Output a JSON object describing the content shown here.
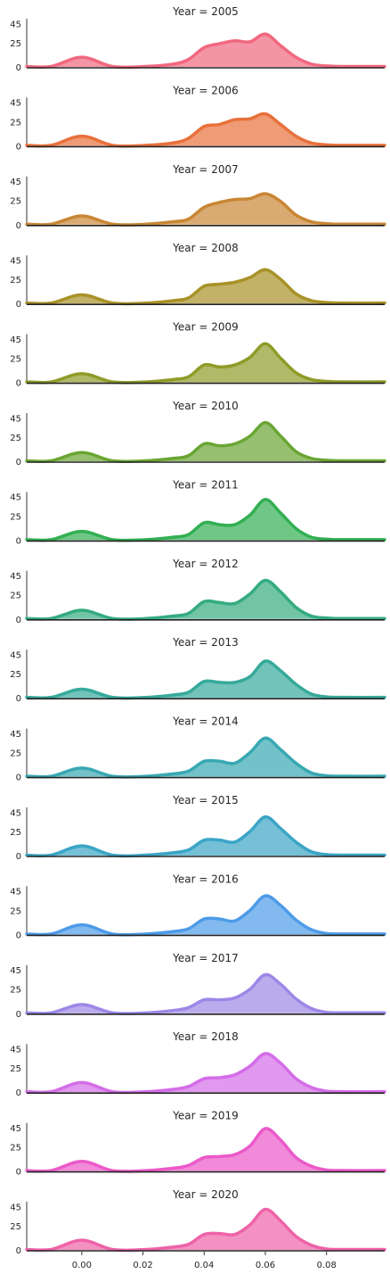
{
  "chart_data": {
    "type": "area",
    "subplot_title_prefix": "Year = ",
    "x_ticks": [
      "0.00",
      "0.02",
      "0.04",
      "0.06",
      "0.08"
    ],
    "x_tick_values": [
      0.0,
      0.02,
      0.04,
      0.06,
      0.08
    ],
    "y_ticks": [
      "0",
      "25",
      "45"
    ],
    "y_tick_values": [
      0,
      25,
      45
    ],
    "xlim": [
      -0.018,
      0.099
    ],
    "ylim": [
      -2,
      48
    ],
    "x_grid": [
      -0.018,
      -0.01,
      0.0,
      0.01,
      0.02,
      0.03,
      0.035,
      0.04,
      0.045,
      0.05,
      0.055,
      0.06,
      0.065,
      0.07,
      0.075,
      0.08,
      0.085,
      0.099
    ],
    "panels": [
      {
        "year": "2005",
        "color": "#f0687f",
        "values": [
          0.5,
          0.5,
          10,
          0.5,
          0.3,
          3,
          8,
          20,
          24,
          27,
          26,
          34,
          22,
          10,
          3,
          1,
          0.5,
          0.5
        ]
      },
      {
        "year": "2006",
        "color": "#e8703b",
        "values": [
          0.5,
          0.5,
          10,
          0.5,
          0.3,
          3,
          8,
          20,
          22,
          27,
          28,
          33,
          22,
          10,
          3,
          1,
          0.5,
          0.5
        ]
      },
      {
        "year": "2007",
        "color": "#c98634",
        "values": [
          0.5,
          0.5,
          9,
          0.5,
          0.3,
          3,
          6,
          18,
          23,
          26,
          27,
          32,
          24,
          10,
          3,
          1,
          0.5,
          0.5
        ]
      },
      {
        "year": "2008",
        "color": "#a89127",
        "values": [
          0.5,
          0.5,
          9,
          0.5,
          0.3,
          3,
          6,
          18,
          20,
          22,
          27,
          35,
          25,
          10,
          3,
          1,
          0.5,
          0.5
        ]
      },
      {
        "year": "2009",
        "color": "#8e9b27",
        "values": [
          0.5,
          0.5,
          9,
          0.5,
          0.3,
          3,
          6,
          18,
          16,
          18,
          26,
          40,
          25,
          10,
          3,
          1,
          0.5,
          0.5
        ]
      },
      {
        "year": "2010",
        "color": "#6aa533",
        "values": [
          0.5,
          0.5,
          9,
          0.5,
          0.3,
          3,
          6,
          18,
          16,
          18,
          26,
          40,
          26,
          10,
          3,
          1,
          0.5,
          0.5
        ]
      },
      {
        "year": "2011",
        "color": "#32af52",
        "values": [
          0.5,
          0.5,
          9,
          0.5,
          0.3,
          3,
          6,
          18,
          16,
          16,
          26,
          42,
          28,
          12,
          3,
          1,
          0.5,
          0.5
        ]
      },
      {
        "year": "2012",
        "color": "#34ab80",
        "values": [
          0.5,
          0.5,
          9,
          0.5,
          0.3,
          3,
          6,
          18,
          17,
          16,
          26,
          40,
          28,
          12,
          3,
          1,
          0.5,
          0.5
        ]
      },
      {
        "year": "2013",
        "color": "#36a99b",
        "values": [
          0.5,
          0.5,
          9,
          0.5,
          0.3,
          3,
          6,
          17,
          16,
          16,
          22,
          38,
          28,
          14,
          4,
          1,
          0.5,
          0.5
        ]
      },
      {
        "year": "2014",
        "color": "#38a8b2",
        "values": [
          0.5,
          0.5,
          9,
          0.5,
          0.3,
          3,
          6,
          16,
          16,
          14,
          25,
          40,
          28,
          14,
          4,
          1,
          0.5,
          0.5
        ]
      },
      {
        "year": "2015",
        "color": "#3aa5c6",
        "values": [
          0.5,
          0.5,
          10,
          0.5,
          0.3,
          3,
          6,
          16,
          16,
          14,
          25,
          40,
          28,
          14,
          4,
          1,
          0.5,
          0.5
        ]
      },
      {
        "year": "2016",
        "color": "#4d9be8",
        "values": [
          0.5,
          0.5,
          10,
          0.5,
          0.3,
          3,
          6,
          16,
          16,
          14,
          25,
          40,
          30,
          15,
          5,
          1,
          0.5,
          0.5
        ]
      },
      {
        "year": "2017",
        "color": "#9c87e6",
        "values": [
          0.5,
          0.5,
          9,
          0.5,
          0.3,
          3,
          6,
          14,
          14,
          16,
          25,
          40,
          30,
          15,
          5,
          1,
          0.5,
          0.5
        ]
      },
      {
        "year": "2018",
        "color": "#d46ce8",
        "values": [
          0.5,
          0.5,
          10,
          0.5,
          0.3,
          3,
          6,
          14,
          15,
          18,
          27,
          40,
          30,
          14,
          5,
          1,
          0.5,
          0.5
        ]
      },
      {
        "year": "2019",
        "color": "#eb59c9",
        "values": [
          0.5,
          0.5,
          10,
          0.5,
          0.3,
          3,
          6,
          14,
          15,
          17,
          26,
          44,
          32,
          14,
          5,
          1,
          0.5,
          0.5
        ]
      },
      {
        "year": "2020",
        "color": "#ee62a8",
        "values": [
          0.5,
          0.5,
          10,
          0.5,
          0.3,
          3,
          6,
          16,
          17,
          16,
          26,
          42,
          30,
          14,
          5,
          1,
          0.5,
          0.5
        ]
      }
    ]
  }
}
